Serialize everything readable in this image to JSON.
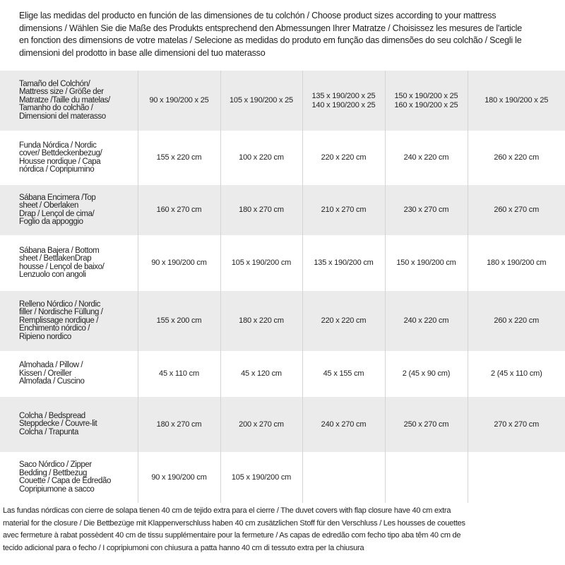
{
  "header": {
    "lines": [
      "Elige las medidas del producto en función de las dimensiones de tu colchón / Choose product sizes according to your mattress",
      "dimensions / Wählen Sie die Maße des Produkts entsprechend den Abmessungen Ihrer Matratze / Choisissez les mesures de l'article",
      "en fonction des dimensions de votre matelas / Selecione as medidas do produto em função das dimensões do seu colchão / Scegli le",
      "dimensioni del prodotto in base alle dimensioni del tuo materasso"
    ]
  },
  "table": {
    "rows": [
      [
        [
          "Tamaño del Colchón/",
          "Mattress size / Größe der",
          "Matratze /Taille du matelas/",
          "Tamanho do colchão /",
          "Dimensioni del materasso"
        ],
        [
          "90 x 190/200 x 25"
        ],
        [
          "105 x 190/200 x 25"
        ],
        [
          "135 x 190/200 x 25",
          "140 x 190/200 x 25"
        ],
        [
          "150 x 190/200 x 25",
          "160 x 190/200 x 25"
        ],
        [
          "180 x 190/200 x 25"
        ]
      ],
      [
        [
          "Funda Nórdica /  Nordic",
          "cover/ Bettdeckenbezug/",
          "Housse nordique / Capa",
          "nórdica / Copripiumino"
        ],
        [
          "155 x 220 cm"
        ],
        [
          "100 x 220 cm"
        ],
        [
          "220 x 220 cm"
        ],
        [
          "240 x 220 cm"
        ],
        [
          "260 x 220 cm"
        ]
      ],
      [
        [
          "Sábana Encimera /Top",
          "sheet / Oberlaken",
          "Drap / Lençol de cima/",
          "Foglio da appoggio"
        ],
        [
          "160 x 270 cm"
        ],
        [
          "180 x 270 cm"
        ],
        [
          "210 x 270 cm"
        ],
        [
          "230 x 270 cm"
        ],
        [
          "260 x 270 cm"
        ]
      ],
      [
        [
          "Sábana Bajera / Bottom",
          "sheet / BettlakenDrap",
          "housse / Lençol de baixo/",
          "Lenzuolo con angoli"
        ],
        [
          "90 x 190/200 cm"
        ],
        [
          "105 x 190/200 cm"
        ],
        [
          "135 x 190/200 cm"
        ],
        [
          "150 x 190/200 cm"
        ],
        [
          "180 x 190/200 cm"
        ]
      ],
      [
        [
          "Relleno Nórdico / Nordic",
          "filler / Nordische Füllung /",
          "Remplissage nordique /",
          "Enchimento nórdico /",
          "Ripieno nordico"
        ],
        [
          "155 x 200 cm"
        ],
        [
          "180 x 220 cm"
        ],
        [
          "220 x 220 cm"
        ],
        [
          "240 x 220 cm"
        ],
        [
          "260 x 220 cm"
        ]
      ],
      [
        [
          "Almohada  / Pillow /",
          "Kissen / Oreiller",
          "Almofada / Cuscino"
        ],
        [
          "45 x 110 cm"
        ],
        [
          "45 x 120 cm"
        ],
        [
          "45 x 155 cm"
        ],
        [
          "2 (45 x 90 cm)"
        ],
        [
          "2 (45 x 110 cm)"
        ]
      ],
      [
        [
          "Colcha / Bedspread",
          "Steppdecke / Couvre-lit",
          "Colcha / Trapunta"
        ],
        [
          "180 x 270 cm"
        ],
        [
          "200 x 270 cm"
        ],
        [
          "240 x 270 cm"
        ],
        [
          "250 x 270 cm"
        ],
        [
          "270 x 270 cm"
        ]
      ],
      [
        [
          "Saco Nórdico / Zipper",
          "Bedding / Bettbezug",
          "Couette  / Capa de Edredão",
          "Copripiumone a sacco"
        ],
        [
          "90 x 190/200 cm"
        ],
        [
          "105 x 190/200 cm"
        ]
      ]
    ]
  },
  "footer": {
    "lines": [
      "Las fundas nórdicas con cierre de solapa tienen 40 cm de tejido extra para el cierre  / The duvet covers with flap closure have 40 cm extra",
      "material for the closure / Die Bettbezüge mit Klappenverschluss haben 40 cm zusätzlichen Stoff für den Verschluss / Les housses de couettes",
      "avec fermeture à rabat possèdent 40 cm de tissu supplémentaire pour la fermeture / As capas de edredão com fecho tipo aba têm 40 cm de",
      "tecido adicional para o fecho / I copripiumoni con chiusura a patta hanno 40 cm di tessuto extra per la chiusura"
    ]
  }
}
